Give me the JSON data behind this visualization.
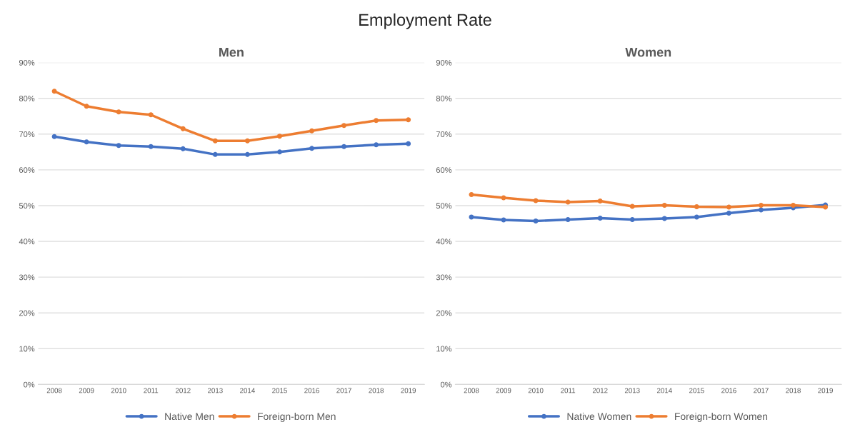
{
  "chart_data": [
    {
      "type": "line",
      "title": "Men",
      "annotations": [
        "Employment Rate"
      ],
      "categories": [
        "2008",
        "2009",
        "2010",
        "2011",
        "2012",
        "2013",
        "2014",
        "2015",
        "2016",
        "2017",
        "2018",
        "2019"
      ],
      "ylim": [
        0,
        90
      ],
      "yticks": [
        {
          "value": 0,
          "label": "0%"
        },
        {
          "value": 10,
          "label": "10%"
        },
        {
          "value": 20,
          "label": "20%"
        },
        {
          "value": 30,
          "label": "30%"
        },
        {
          "value": 40,
          "label": "40%"
        },
        {
          "value": 50,
          "label": "50%"
        },
        {
          "value": 60,
          "label": "60%"
        },
        {
          "value": 70,
          "label": "70%"
        },
        {
          "value": 80,
          "label": "80%"
        },
        {
          "value": 90,
          "label": "90%"
        }
      ],
      "grid": "y",
      "legend": "bottom",
      "marker": "circle",
      "line_style": "solid",
      "series": [
        {
          "name": "Native Men",
          "color": "#4472c4",
          "values": [
            69.3,
            67.8,
            66.8,
            66.5,
            65.9,
            64.3,
            64.3,
            65.0,
            66.0,
            66.5,
            67.0,
            67.3
          ]
        },
        {
          "name": "Foreign-born Men",
          "color": "#ed7d31",
          "values": [
            82.0,
            77.8,
            76.2,
            75.4,
            71.5,
            68.1,
            68.1,
            69.4,
            70.9,
            72.4,
            73.8,
            74.0
          ]
        }
      ]
    },
    {
      "type": "line",
      "title": "Women",
      "categories": [
        "2008",
        "2009",
        "2010",
        "2011",
        "2012",
        "2013",
        "2014",
        "2015",
        "2016",
        "2017",
        "2018",
        "2019"
      ],
      "ylim": [
        0,
        90
      ],
      "yticks": [
        {
          "value": 0,
          "label": "0%"
        },
        {
          "value": 10,
          "label": "10%"
        },
        {
          "value": 20,
          "label": "20%"
        },
        {
          "value": 30,
          "label": "30%"
        },
        {
          "value": 40,
          "label": "40%"
        },
        {
          "value": 50,
          "label": "50%"
        },
        {
          "value": 60,
          "label": "60%"
        },
        {
          "value": 70,
          "label": "70%"
        },
        {
          "value": 80,
          "label": "80%"
        },
        {
          "value": 90,
          "label": "90%"
        }
      ],
      "grid": "y",
      "legend": "bottom",
      "marker": "circle",
      "line_style": "solid",
      "series": [
        {
          "name": "Native Women",
          "color": "#4472c4",
          "values": [
            46.8,
            46.0,
            45.7,
            46.1,
            46.5,
            46.1,
            46.4,
            46.8,
            47.9,
            48.8,
            49.4,
            50.2
          ]
        },
        {
          "name": "Foreign-born Women",
          "color": "#ed7d31",
          "values": [
            53.1,
            52.2,
            51.4,
            51.0,
            51.3,
            49.8,
            50.1,
            49.7,
            49.6,
            50.1,
            50.1,
            49.6
          ]
        }
      ]
    }
  ]
}
